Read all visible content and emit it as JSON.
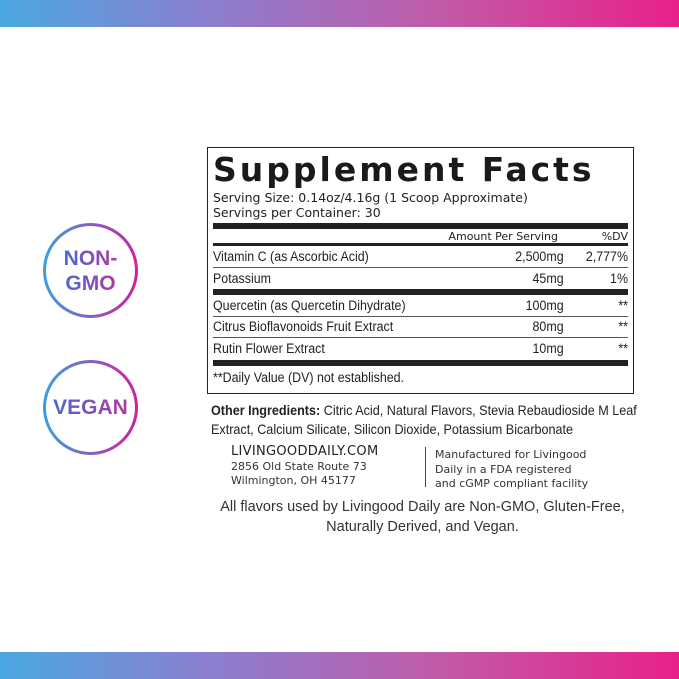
{
  "badges": [
    {
      "label": "NON-\nGMO"
    },
    {
      "label": "VEGAN"
    }
  ],
  "facts": {
    "title": "Supplement Facts",
    "serving_size": "Serving Size: 0.14oz/4.16g (1 Scoop Approximate)",
    "servings_per_container": "Servings per Container: 30",
    "col_amount": "Amount Per Serving",
    "col_dv": "%DV",
    "group1": [
      {
        "name": "Vitamin C (as Ascorbic Acid)",
        "amount": "2,500mg",
        "dv": "2,777%"
      },
      {
        "name": "Potassium",
        "amount": "45mg",
        "dv": "1%"
      }
    ],
    "group2": [
      {
        "name": "Quercetin (as Quercetin Dihydrate)",
        "amount": "100mg",
        "dv": "**"
      },
      {
        "name": "Citrus Bioflavonoids Fruit Extract",
        "amount": "80mg",
        "dv": "**"
      },
      {
        "name": "Rutin Flower Extract",
        "amount": "10mg",
        "dv": "**"
      }
    ],
    "footnote": "**Daily Value (DV) not established."
  },
  "other": {
    "label": "Other Ingredients:",
    "text": " Citric Acid, Natural Flavors, Stevia Rebaudioside M Leaf Extract, Calcium Silicate, Silicon Dioxide, Potassium Bicarbonate"
  },
  "address": {
    "site": "LIVINGOODDAILY.COM",
    "line1": "2856 Old State Route 73",
    "line2": "Wilmington, OH 45177"
  },
  "manufacturer": {
    "line1": "Manufactured for Livingood",
    "line2": "Daily in a FDA registered",
    "line3": "and cGMP compliant facility"
  },
  "note": {
    "line1": "All flavors used by Livingood Daily are Non-GMO, Gluten-Free,",
    "line2": "Naturally Derived, and Vegan."
  },
  "colors": {
    "gradient_start": "#4aa8e0",
    "gradient_end": "#e8208a"
  }
}
